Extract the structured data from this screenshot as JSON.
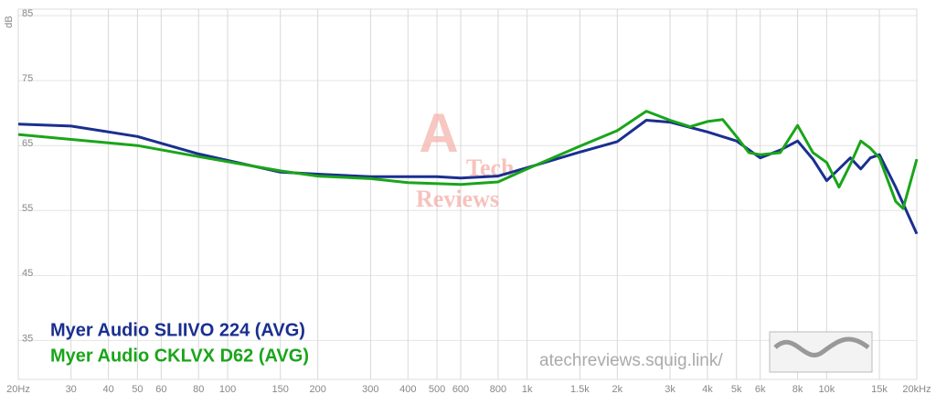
{
  "chart_data": {
    "type": "line",
    "y_label": "dB",
    "x_scale": "log",
    "grid": true,
    "watermark": "atechreviews.squig.link/",
    "logo": [
      "A",
      "Tech",
      "Reviews"
    ],
    "xlim": [
      20,
      20000
    ],
    "ylim": [
      29,
      86
    ],
    "xticks": [
      {
        "value": 20,
        "label": "20Hz"
      },
      30,
      40,
      50,
      60,
      80,
      100,
      150,
      200,
      300,
      400,
      500,
      600,
      800,
      {
        "value": 1000,
        "label": "1k"
      },
      {
        "value": 1500,
        "label": "1.5k"
      },
      {
        "value": 2000,
        "label": "2k"
      },
      {
        "value": 3000,
        "label": "3k"
      },
      {
        "value": 4000,
        "label": "4k"
      },
      {
        "value": 5000,
        "label": "5k"
      },
      {
        "value": 6000,
        "label": "6k"
      },
      {
        "value": 8000,
        "label": "8k"
      },
      {
        "value": 10000,
        "label": "10k"
      },
      {
        "value": 15000,
        "label": "15k"
      },
      {
        "value": 20000,
        "label": "20kHz"
      }
    ],
    "yticks": [
      35,
      45,
      55,
      65,
      75,
      85
    ],
    "series": [
      {
        "name": "Myer Audio SLIIVO 224 (AVG)",
        "color": "#1a2f8f",
        "x": [
          20,
          30,
          50,
          80,
          150,
          200,
          300,
          500,
          600,
          800,
          1000,
          1500,
          2000,
          2500,
          3000,
          4000,
          5000,
          6000,
          7000,
          8000,
          9000,
          10000,
          11000,
          12000,
          13000,
          14000,
          15000,
          17000,
          20000
        ],
        "values": [
          68.3,
          68.0,
          66.4,
          63.7,
          60.9,
          60.6,
          60.2,
          60.2,
          60.0,
          60.3,
          61.6,
          64.0,
          65.6,
          68.9,
          68.6,
          67.1,
          65.7,
          63.1,
          64.3,
          65.7,
          62.9,
          59.6,
          61.4,
          63.1,
          61.4,
          63.1,
          63.6,
          58.6,
          51.4
        ]
      },
      {
        "name": "Myer Audio CKLVX D62 (AVG)",
        "color": "#1aa51a",
        "x": [
          20,
          50,
          80,
          150,
          200,
          300,
          400,
          600,
          800,
          1000,
          1500,
          2000,
          2500,
          3000,
          3500,
          4000,
          4500,
          5000,
          5500,
          6000,
          7000,
          8000,
          9000,
          10000,
          11000,
          12000,
          13000,
          14000,
          15000,
          17000,
          18000,
          20000
        ],
        "values": [
          66.7,
          65.0,
          63.3,
          61.1,
          60.3,
          59.9,
          59.3,
          59.0,
          59.4,
          61.4,
          64.9,
          67.3,
          70.3,
          68.9,
          67.9,
          68.7,
          69.0,
          66.4,
          63.9,
          63.6,
          63.9,
          68.1,
          63.9,
          62.4,
          58.6,
          62.1,
          65.7,
          64.6,
          63.1,
          56.4,
          55.3,
          62.9
        ]
      }
    ]
  }
}
